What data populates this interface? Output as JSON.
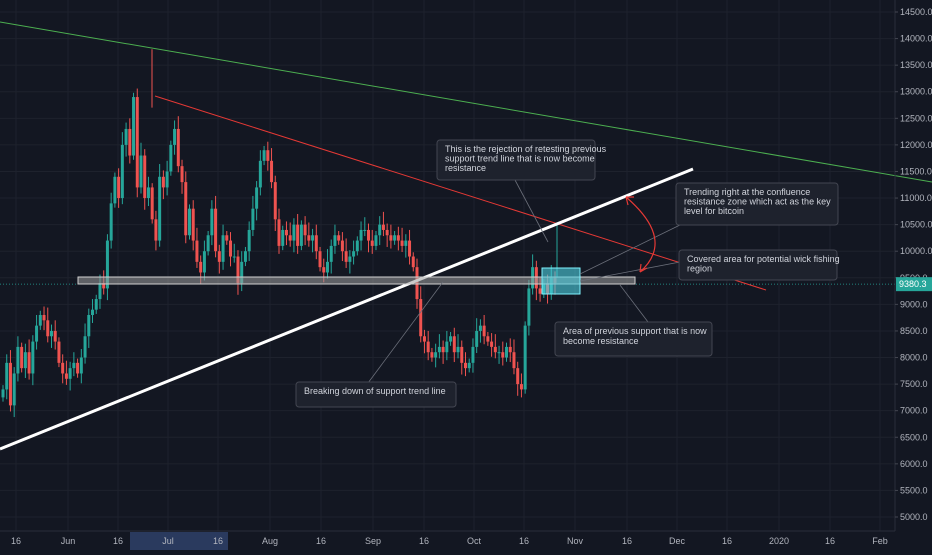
{
  "chart_data": {
    "type": "candlestick",
    "yaxis": {
      "min": 5000,
      "max": 14500,
      "ticks": [
        "14500.0",
        "14000.0",
        "13500.0",
        "13000.0",
        "12500.0",
        "12000.0",
        "11500.0",
        "11000.0",
        "10500.0",
        "10000.0",
        "9500.0",
        "9000.0",
        "8500.0",
        "8000.0",
        "7500.0",
        "7000.0",
        "6500.0",
        "6000.0",
        "5500.0",
        "5000.0"
      ]
    },
    "xaxis": {
      "labels": [
        "16",
        "Jun",
        "16",
        "Jul",
        "16",
        "Aug",
        "16",
        "Sep",
        "16",
        "Oct",
        "16",
        "Nov",
        "16",
        "Dec",
        "16",
        "2020",
        "16",
        "Feb"
      ],
      "highlighted": "Jul"
    },
    "price_label": "9380.3",
    "price_value": 9380.3,
    "annotations": {
      "rejection": [
        "This is the rejection of retesting previous",
        "support trend line that is now become",
        "resistance"
      ],
      "trending": [
        "Trending right at the confluence",
        "resistance zone which act as the key",
        "level for bitcoin"
      ],
      "covered": [
        "Covered area for potential wick fishing",
        "region"
      ],
      "previous_support": [
        "Area of previous support that is now",
        "become resistance"
      ],
      "breaking": [
        "Breaking down of support trend line"
      ]
    },
    "colors": {
      "background": "#131722",
      "up": "#26a69a",
      "down": "#ef5350",
      "green_line": "#4caf50",
      "red_line": "#e53935",
      "support_line": "#ffffff",
      "zone": "#9e9e9e",
      "highlight_box": "#4dd0e1",
      "price_line": "#26a69a"
    },
    "closes": [
      7400,
      7900,
      7100,
      7700,
      8200,
      7800,
      8100,
      7700,
      8300,
      8600,
      8800,
      8700,
      8400,
      8500,
      8300,
      7900,
      7700,
      7600,
      7800,
      7900,
      7700,
      8000,
      8400,
      8800,
      8900,
      9100,
      9400,
      9300,
      10200,
      10900,
      11400,
      11000,
      12000,
      12300,
      11800,
      12900,
      11200,
      11800,
      11000,
      11200,
      10600,
      10200,
      11400,
      11200,
      11500,
      12000,
      12300,
      11600,
      11300,
      10300,
      10800,
      10200,
      9800,
      9600,
      10000,
      10300,
      10800,
      10000,
      9800,
      10300,
      10200,
      9900,
      9900,
      9400,
      9800,
      10000,
      10400,
      10800,
      11200,
      11700,
      11900,
      11700,
      11300,
      10600,
      10100,
      10400,
      10300,
      10200,
      10500,
      10100,
      10500,
      10300,
      10200,
      10300,
      10000,
      9700,
      9600,
      9800,
      10100,
      10300,
      10200,
      10000,
      9800,
      9900,
      10000,
      10200,
      10400,
      10400,
      10200,
      10100,
      10300,
      10500,
      10400,
      10300,
      10200,
      10300,
      10200,
      10100,
      10200,
      9900,
      9700,
      9100,
      8400,
      8300,
      8100,
      8000,
      8100,
      8200,
      8100,
      8300,
      8400,
      8100,
      8200,
      7900,
      7800,
      7900,
      8200,
      8500,
      8600,
      8400,
      8300,
      8200,
      8100,
      8100,
      8000,
      8200,
      8100,
      7800,
      7500,
      7400,
      8600,
      9300,
      9700,
      9300,
      9200,
      9400,
      9200,
      9500,
      9400
    ]
  }
}
